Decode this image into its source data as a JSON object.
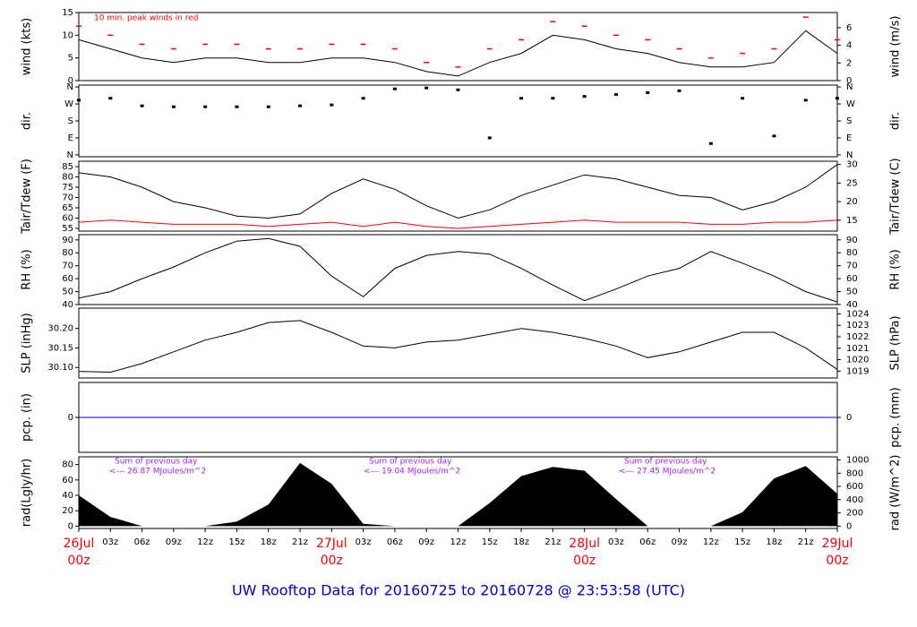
{
  "title": "UW Rooftop Data for 20160725  to  20160728 @ 23:53:58  (UTC)",
  "chart_data": [
    {
      "type": "line",
      "ylabel": "wind (kts)",
      "y2label": "wind (m/s)",
      "annotation": "10 min. peak winds in red",
      "x": [
        0,
        3,
        6,
        9,
        12,
        15,
        18,
        21,
        24,
        27,
        30,
        33,
        36,
        39,
        42,
        45,
        48,
        51,
        54,
        57,
        60,
        63,
        66,
        69,
        72
      ],
      "ylim": [
        0,
        15
      ],
      "yticks": [
        0,
        5,
        10,
        15
      ],
      "y2lim": [
        0,
        7.717
      ],
      "y2ticks": [
        0,
        2,
        4,
        6
      ],
      "series": [
        {
          "style": "line",
          "color": "#000000",
          "values": [
            9,
            7,
            5,
            4,
            5,
            5,
            4,
            4,
            5,
            5,
            4,
            2,
            1,
            4,
            6,
            10,
            9,
            7,
            6,
            4,
            3,
            3,
            4,
            11,
            6
          ]
        },
        {
          "style": "dash",
          "color": "#ff0000",
          "values": [
            12,
            10,
            8,
            7,
            8,
            8,
            7,
            7,
            8,
            8,
            7,
            4,
            3,
            7,
            9,
            13,
            12,
            10,
            9,
            7,
            5,
            6,
            7,
            14,
            9
          ]
        }
      ]
    },
    {
      "type": "scatter",
      "ylabel": "dir.",
      "y2label": "dir.",
      "x": [
        0,
        3,
        6,
        9,
        12,
        15,
        18,
        21,
        24,
        27,
        30,
        33,
        36,
        39,
        42,
        45,
        48,
        51,
        54,
        57,
        60,
        63,
        66,
        69,
        72
      ],
      "ylim": [
        -10,
        370
      ],
      "yticks": [
        {
          "value": 0,
          "label": "N"
        },
        {
          "value": 90,
          "label": "E"
        },
        {
          "value": 180,
          "label": "S"
        },
        {
          "value": 270,
          "label": "W"
        },
        {
          "value": 360,
          "label": "N"
        }
      ],
      "y2lim": [
        -10,
        370
      ],
      "y2ticks": [
        {
          "value": 0,
          "label": "N"
        },
        {
          "value": 90,
          "label": "E"
        },
        {
          "value": 180,
          "label": "S"
        },
        {
          "value": 270,
          "label": "W"
        },
        {
          "value": 360,
          "label": "N"
        }
      ],
      "series": [
        {
          "color": "#000000",
          "values": [
            290,
            300,
            260,
            255,
            255,
            255,
            255,
            260,
            265,
            300,
            350,
            355,
            345,
            90,
            300,
            300,
            310,
            320,
            330,
            340,
            60,
            300,
            100,
            290,
            300
          ]
        }
      ]
    },
    {
      "type": "line",
      "ylabel": "Tair/Tdew (F)",
      "y2label": "Tair/Tdew (C)",
      "x": [
        0,
        3,
        6,
        9,
        12,
        15,
        18,
        21,
        24,
        27,
        30,
        33,
        36,
        39,
        42,
        45,
        48,
        51,
        54,
        57,
        60,
        63,
        66,
        69,
        72
      ],
      "ylim": [
        53.7,
        87.6
      ],
      "yticks": [
        55,
        60,
        65,
        70,
        75,
        80,
        85
      ],
      "y2lim": [
        12.06,
        30.89
      ],
      "y2ticks": [
        15,
        20,
        25,
        30
      ],
      "series": [
        {
          "style": "line",
          "color": "#000000",
          "values": [
            82,
            80,
            75,
            68,
            65,
            61,
            60,
            62,
            72,
            79,
            74,
            66,
            60,
            64,
            71,
            76,
            81,
            79,
            75,
            71,
            70,
            64,
            68,
            75,
            86
          ]
        },
        {
          "style": "line",
          "color": "#ff0000",
          "values": [
            58,
            59,
            58,
            57,
            57,
            57,
            56,
            57,
            58,
            56,
            58,
            56,
            55,
            56,
            57,
            58,
            59,
            58,
            58,
            58,
            57,
            57,
            58,
            58,
            59
          ]
        }
      ]
    },
    {
      "type": "line",
      "ylabel": "RH (%)",
      "y2label": "RH (%)",
      "x": [
        0,
        3,
        6,
        9,
        12,
        15,
        18,
        21,
        24,
        27,
        30,
        33,
        36,
        39,
        42,
        45,
        48,
        51,
        54,
        57,
        60,
        63,
        66,
        69,
        72
      ],
      "ylim": [
        40,
        94
      ],
      "yticks": [
        40,
        50,
        60,
        70,
        80,
        90
      ],
      "y2lim": [
        40,
        94
      ],
      "y2ticks": [
        40,
        50,
        60,
        70,
        80,
        90
      ],
      "series": [
        {
          "style": "line",
          "color": "#000000",
          "values": [
            45,
            50,
            60,
            69,
            80,
            89,
            91,
            85,
            62,
            46,
            68,
            78,
            81,
            79,
            68,
            55,
            43,
            52,
            62,
            68,
            81,
            72,
            62,
            50,
            42
          ]
        }
      ]
    },
    {
      "type": "line",
      "ylabel": "SLP (inHg)",
      "y2label": "SLP (hPa)",
      "x": [
        0,
        3,
        6,
        9,
        12,
        15,
        18,
        21,
        24,
        27,
        30,
        33,
        36,
        39,
        42,
        45,
        48,
        51,
        54,
        57,
        60,
        63,
        66,
        69,
        72
      ],
      "ylim": [
        30.073,
        30.252
      ],
      "yticks": [
        {
          "value": 30.1,
          "label": "30.10"
        },
        {
          "value": 30.15,
          "label": "30.15"
        },
        {
          "value": 30.2,
          "label": "30.20"
        }
      ],
      "y2lim": [
        1018.4,
        1024.5
      ],
      "y2ticks": [
        1019,
        1020,
        1021,
        1022,
        1023,
        1024
      ],
      "series": [
        {
          "style": "line",
          "color": "#000000",
          "values": [
            30.09,
            30.088,
            30.11,
            30.14,
            30.17,
            30.19,
            30.215,
            30.22,
            30.19,
            30.155,
            30.15,
            30.165,
            30.17,
            30.185,
            30.2,
            30.19,
            30.175,
            30.155,
            30.125,
            30.14,
            30.165,
            30.19,
            30.19,
            30.15,
            30.095
          ]
        }
      ]
    },
    {
      "type": "line",
      "ylabel": "pcp. (in)",
      "y2label": "pcp. (mm)",
      "x": [
        0,
        3,
        6,
        9,
        12,
        15,
        18,
        21,
        24,
        27,
        30,
        33,
        36,
        39,
        42,
        45,
        48,
        51,
        54,
        57,
        60,
        63,
        66,
        69,
        72
      ],
      "ylim": [
        -1,
        1
      ],
      "yticks": [
        0
      ],
      "y2lim": [
        -1,
        1
      ],
      "y2ticks": [
        0
      ],
      "series": [
        {
          "style": "line",
          "color": "#0000cc",
          "values": [
            0,
            0,
            0,
            0,
            0,
            0,
            0,
            0,
            0,
            0,
            0,
            0,
            0,
            0,
            0,
            0,
            0,
            0,
            0,
            0,
            0,
            0,
            0,
            0,
            0
          ]
        }
      ]
    },
    {
      "type": "area",
      "ylabel": "rad(Lgly/hr)",
      "y2label": "rad (W/m^2)",
      "x": [
        0,
        3,
        6,
        9,
        12,
        15,
        18,
        21,
        24,
        27,
        30,
        33,
        36,
        39,
        42,
        45,
        48,
        51,
        54,
        57,
        60,
        63,
        66,
        69,
        72
      ],
      "ylim": [
        -3,
        90
      ],
      "yticks": [
        0,
        20,
        40,
        60,
        80
      ],
      "y2lim": [
        -35,
        1047
      ],
      "y2ticks": [
        0,
        200,
        400,
        600,
        800,
        1000
      ],
      "annotations": [
        {
          "heading": "Sum of previous day",
          "text": "<--- 26.87 MJoules/m^2"
        },
        {
          "heading": "Sum of previous day",
          "text": "<--- 19.04 MJoules/m^2"
        },
        {
          "heading": "Sum of previous day",
          "text": "<--- 27.45 MJoules/m^2"
        }
      ],
      "xlim": [
        0,
        72
      ],
      "xticks": [
        {
          "value": 0,
          "label": "00z",
          "date": "26Jul"
        },
        {
          "value": 3,
          "label": "03z"
        },
        {
          "value": 6,
          "label": "06z"
        },
        {
          "value": 9,
          "label": "09z"
        },
        {
          "value": 12,
          "label": "12z"
        },
        {
          "value": 15,
          "label": "15z"
        },
        {
          "value": 18,
          "label": "18z"
        },
        {
          "value": 21,
          "label": "21z"
        },
        {
          "value": 24,
          "label": "00z",
          "date": "27Jul"
        },
        {
          "value": 27,
          "label": "03z"
        },
        {
          "value": 30,
          "label": "06z"
        },
        {
          "value": 33,
          "label": "09z"
        },
        {
          "value": 36,
          "label": "12z"
        },
        {
          "value": 39,
          "label": "15z"
        },
        {
          "value": 42,
          "label": "18z"
        },
        {
          "value": 45,
          "label": "21z"
        },
        {
          "value": 48,
          "label": "00z",
          "date": "28Jul"
        },
        {
          "value": 51,
          "label": "03z"
        },
        {
          "value": 54,
          "label": "06z"
        },
        {
          "value": 57,
          "label": "09z"
        },
        {
          "value": 60,
          "label": "12z"
        },
        {
          "value": 63,
          "label": "15z"
        },
        {
          "value": 66,
          "label": "18z"
        },
        {
          "value": 69,
          "label": "21z"
        },
        {
          "value": 72,
          "label": "00z",
          "date": "29Jul"
        }
      ],
      "series": [
        {
          "color": "#000000",
          "values": [
            40,
            12,
            0,
            0,
            0,
            6,
            28,
            82,
            55,
            3,
            0,
            0,
            0,
            30,
            65,
            77,
            72,
            35,
            0,
            0,
            0,
            18,
            62,
            78,
            42
          ]
        }
      ]
    }
  ]
}
